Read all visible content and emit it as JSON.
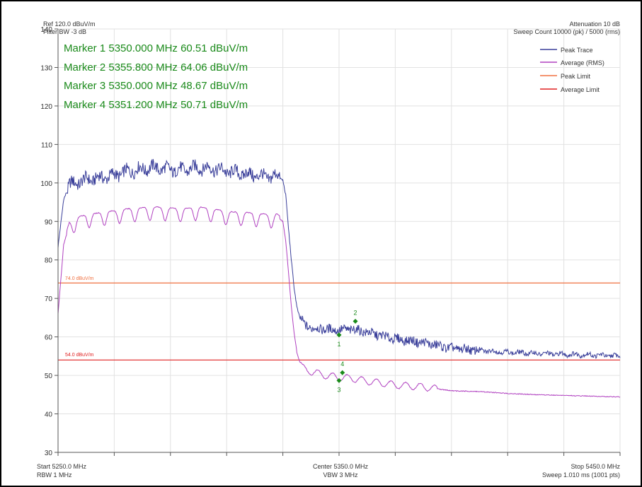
{
  "header": {
    "ref": "Ref 120.0 dBuV/m",
    "filter": "Filter BW -3 dB",
    "attenuation": "Attenuation 10 dB",
    "sweep_count": "Sweep Count 10000 (pk) / 5000 (rms)"
  },
  "footer": {
    "start": "Start 5250.0 MHz",
    "rbw": "RBW 1 MHz",
    "center": "Center 5350.0 MHz",
    "vbw": "VBW 3 MHz",
    "stop": "Stop 5450.0 MHz",
    "sweep": "Sweep 1.010 ms (1001 pts)"
  },
  "markers_text": [
    "Marker 1 5350.000 MHz 60.51 dBuV/m",
    "Marker 2 5355.800 MHz 64.06 dBuV/m",
    "Marker 3 5350.000 MHz 48.67 dBuV/m",
    "Marker 4 5351.200 MHz 50.71 dBuV/m"
  ],
  "colors": {
    "peak_trace": "#3a3f9a",
    "average_rms": "#b040c0",
    "peak_limit": "#f07040",
    "average_limit": "#e02020",
    "marker": "#1a8a1a",
    "grid": "#e2e2e2"
  },
  "chart_data": {
    "type": "line",
    "xlim": [
      5250.0,
      5450.0
    ],
    "ylim": [
      30,
      140
    ],
    "yticks": [
      30,
      40,
      50,
      60,
      70,
      80,
      90,
      100,
      110,
      120,
      130,
      140
    ],
    "grid": true,
    "legend_placement": "top-right",
    "series": [
      {
        "name": "Peak Trace",
        "color": "#3a3f9a",
        "x": [
          5250,
          5252,
          5254,
          5257,
          5260,
          5265,
          5270,
          5275,
          5280,
          5285,
          5290,
          5295,
          5300,
          5305,
          5310,
          5315,
          5320,
          5325,
          5328,
          5330,
          5331,
          5332,
          5333,
          5334,
          5335,
          5336,
          5337,
          5338,
          5340,
          5345,
          5350,
          5355,
          5360,
          5370,
          5380,
          5390,
          5400,
          5410,
          5420,
          5430,
          5440,
          5450
        ],
        "y": [
          83,
          96,
          99.5,
          100.2,
          100.8,
          101.3,
          102,
          103,
          103.7,
          104,
          103.4,
          103.4,
          104,
          103.8,
          103,
          102.5,
          102,
          101.5,
          101.8,
          101,
          97,
          88,
          80,
          73,
          68,
          65,
          64,
          63,
          62.3,
          62,
          61.8,
          62,
          61.2,
          59.5,
          58.5,
          57,
          56.5,
          56,
          55.7,
          55.5,
          55.3,
          55
        ]
      },
      {
        "name": "Average (RMS)",
        "color": "#b040c0",
        "x": [
          5250,
          5252,
          5254,
          5257,
          5260,
          5265,
          5270,
          5275,
          5280,
          5285,
          5290,
          5295,
          5300,
          5305,
          5310,
          5315,
          5320,
          5325,
          5328,
          5330,
          5331,
          5332,
          5333,
          5334,
          5335,
          5336,
          5337,
          5338,
          5340,
          5345,
          5350,
          5355,
          5360,
          5370,
          5380,
          5390,
          5400,
          5410,
          5420,
          5430,
          5440,
          5450
        ],
        "y": [
          66,
          84,
          89,
          90.3,
          91,
          91.5,
          92,
          92.5,
          92.8,
          93,
          92.7,
          92.6,
          93,
          92.5,
          91.8,
          91.6,
          91.4,
          91,
          91.2,
          90,
          85,
          77,
          68,
          61,
          56,
          53.5,
          52,
          51.5,
          51,
          50,
          49.5,
          49.2,
          48.5,
          47.5,
          47,
          46,
          45.8,
          45.3,
          45,
          44.8,
          44.6,
          44.4
        ]
      },
      {
        "name": "Peak Limit",
        "color": "#f07040",
        "x": [
          5250,
          5450
        ],
        "y": [
          74,
          74
        ],
        "label": "74.0 dBuV/m"
      },
      {
        "name": "Average Limit",
        "color": "#e02020",
        "x": [
          5250,
          5450
        ],
        "y": [
          54,
          54
        ],
        "label": "54.0 dBuV/m"
      }
    ],
    "markers": [
      {
        "id": "1",
        "x": 5350.0,
        "y": 60.51
      },
      {
        "id": "2",
        "x": 5355.8,
        "y": 64.06
      },
      {
        "id": "3",
        "x": 5350.0,
        "y": 48.67
      },
      {
        "id": "4",
        "x": 5351.2,
        "y": 50.71
      }
    ]
  }
}
